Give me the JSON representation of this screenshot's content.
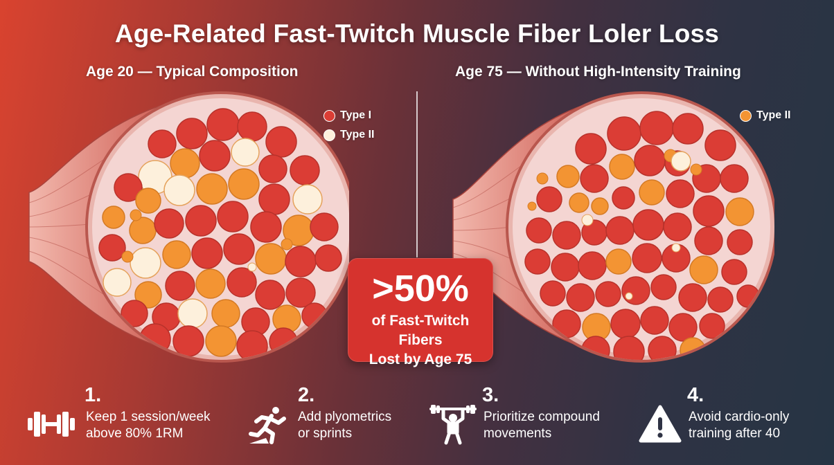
{
  "title": "Age-Related Fast-Twitch Muscle Fiber Loler Loss",
  "panels": {
    "left": {
      "heading": "Age 20 — Typical Composition",
      "legend": [
        {
          "label": "Type I",
          "color": "#db3d35"
        },
        {
          "label": "Type II",
          "color": "#fdf0dc"
        }
      ]
    },
    "right": {
      "heading": "Age 75 — Without High-Intensity Training",
      "legend": [
        {
          "label": "Type II",
          "color": "#f39433"
        }
      ]
    }
  },
  "colors": {
    "type1": "#db3d35",
    "type2_pale": "#fdf0dc",
    "type2_orange": "#f39433",
    "tissue": "#f4d5d2",
    "callout": "#d6332e"
  },
  "callout": {
    "value": ">50%",
    "text_line1": "of Fast-Twitch Fibers",
    "text_line2": "Lost by Age 75"
  },
  "tips": [
    {
      "number": "1.",
      "line1": "Keep 1 session/week",
      "line2": "above 80% 1RM",
      "icon": "dumbbell-icon"
    },
    {
      "number": "2.",
      "line1": "Add plyometrics",
      "line2": "or sprints",
      "icon": "sprinter-icon"
    },
    {
      "number": "3.",
      "line1": "Prioritize compound",
      "line2": "movements",
      "icon": "weightlifter-icon"
    },
    {
      "number": "4.",
      "line1": "Avoid cardio-only",
      "line2": "training after 40",
      "icon": "warning-icon"
    }
  ]
}
